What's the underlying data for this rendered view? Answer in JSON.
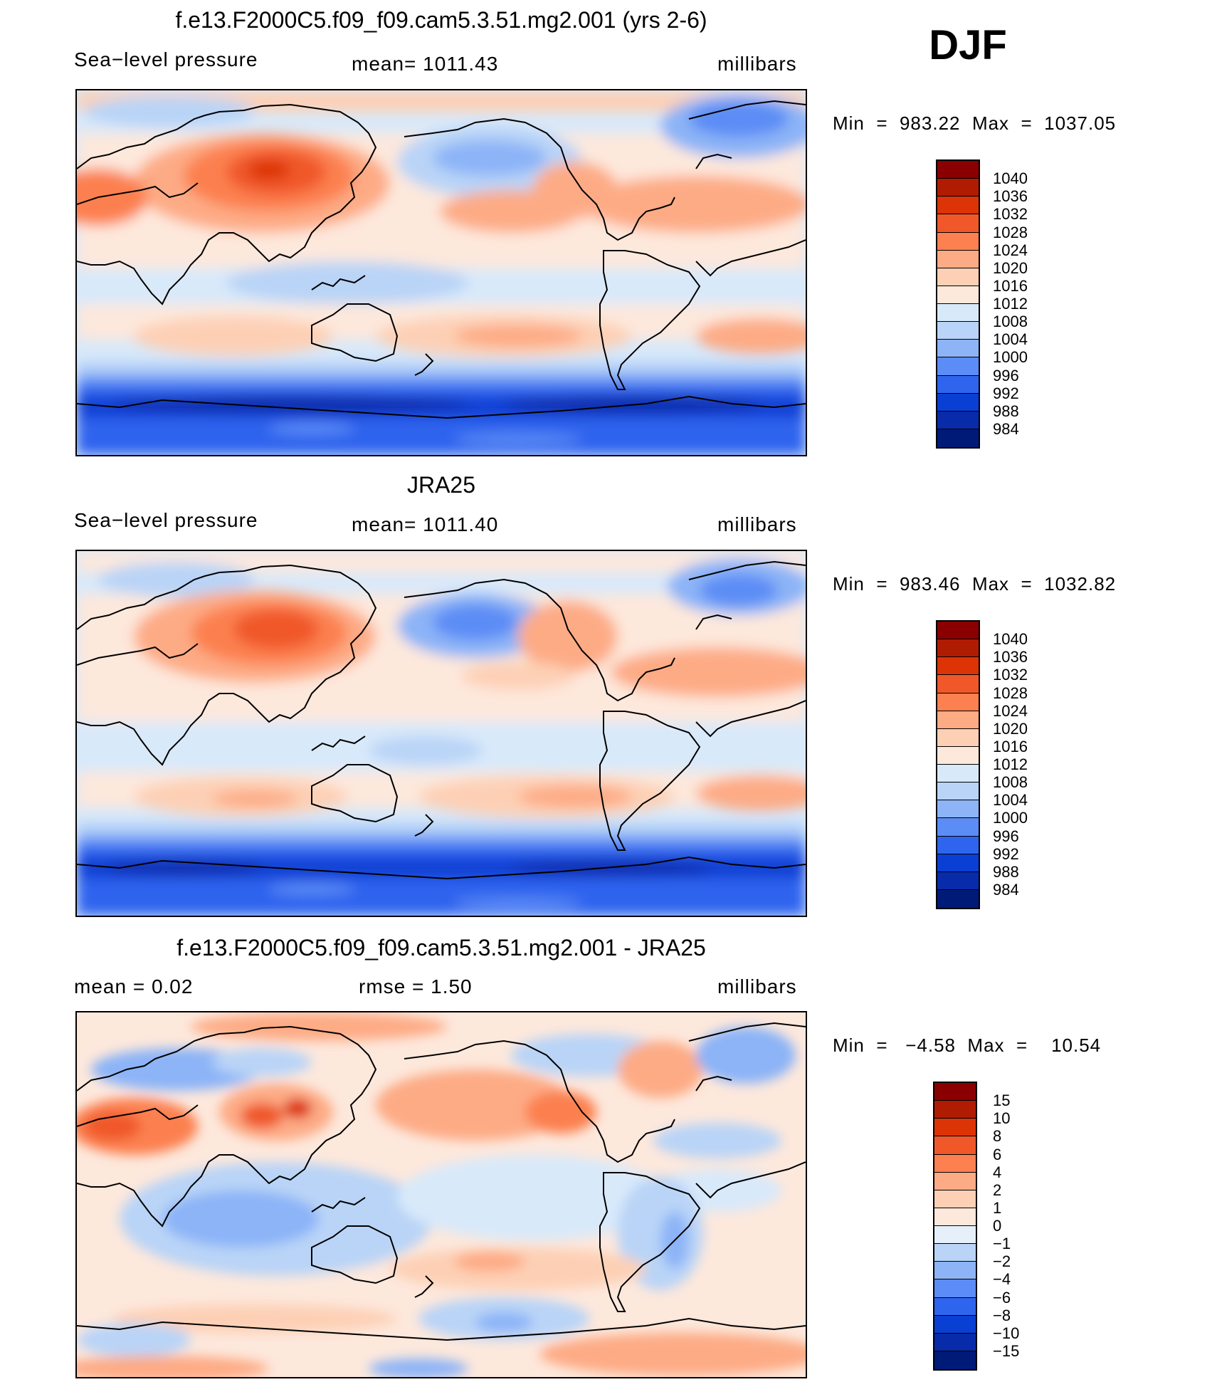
{
  "season": "DJF",
  "panels": [
    {
      "title": "f.e13.F2000C5.f09_f09.cam5.3.51.mg2.001 (yrs 2-6)",
      "left_label": "Sea−level pressure",
      "center_label": "mean=  1011.43",
      "units": "millibars",
      "minmax": "Min  =  983.22  Max  =  1037.05",
      "colorbar": {
        "labels": [
          "1040",
          "1036",
          "1032",
          "1028",
          "1024",
          "1020",
          "1016",
          "1012",
          "1008",
          "1004",
          "1000",
          "996",
          "992",
          "988",
          "984"
        ],
        "colors": [
          "#8a0000",
          "#b01c02",
          "#dc3406",
          "#f0582a",
          "#fc8050",
          "#fdab85",
          "#fdd0b5",
          "#fde8dc",
          "#d8e9fa",
          "#b9d4f7",
          "#8cb4f7",
          "#5c8cf5",
          "#2e64ee",
          "#0a3fd4",
          "#082baa",
          "#001a78"
        ]
      }
    },
    {
      "title": "JRA25",
      "left_label": "Sea−level pressure",
      "center_label": "mean=  1011.40",
      "units": "millibars",
      "minmax": "Min  =  983.46  Max  =  1032.82",
      "colorbar": {
        "labels": [
          "1040",
          "1036",
          "1032",
          "1028",
          "1024",
          "1020",
          "1016",
          "1012",
          "1008",
          "1004",
          "1000",
          "996",
          "992",
          "988",
          "984"
        ],
        "colors": [
          "#8a0000",
          "#b01c02",
          "#dc3406",
          "#f0582a",
          "#fc8050",
          "#fdab85",
          "#fdd0b5",
          "#fde8dc",
          "#d8e9fa",
          "#b9d4f7",
          "#8cb4f7",
          "#5c8cf5",
          "#2e64ee",
          "#0a3fd4",
          "#082baa",
          "#001a78"
        ]
      }
    },
    {
      "title": "f.e13.F2000C5.f09_f09.cam5.3.51.mg2.001 - JRA25",
      "left_label": "mean  =     0.02",
      "center_label": "rmse  =     1.50",
      "units": "millibars",
      "minmax": "Min  =   −4.58  Max  =    10.54",
      "colorbar": {
        "labels": [
          "15",
          "10",
          "8",
          "6",
          "4",
          "2",
          "1",
          "0",
          "−1",
          "−2",
          "−4",
          "−6",
          "−8",
          "−10",
          "−15"
        ],
        "colors": [
          "#8a0000",
          "#b01c02",
          "#dc3406",
          "#f0582a",
          "#fc8050",
          "#fdab85",
          "#fdd0b5",
          "#fde8dc",
          "#e6f0fb",
          "#b9d4f7",
          "#8cb4f7",
          "#5c8cf5",
          "#2e64ee",
          "#0a3fd4",
          "#082baa",
          "#001a78"
        ]
      }
    }
  ]
}
